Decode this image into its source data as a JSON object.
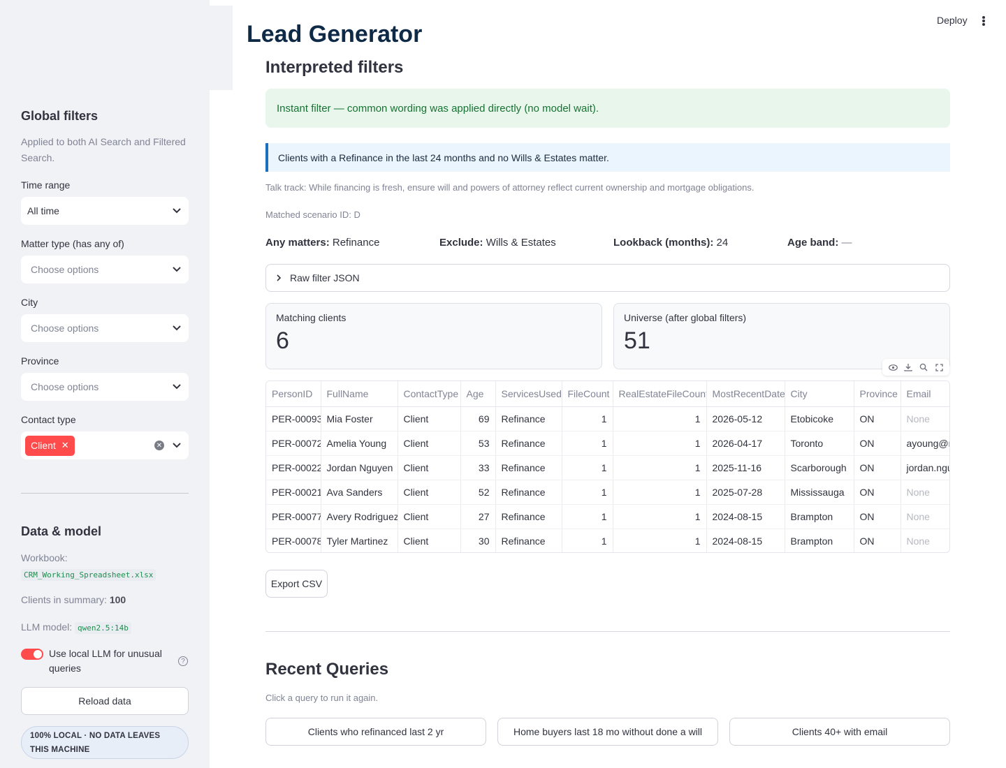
{
  "header": {
    "deploy_label": "Deploy",
    "title": "Lead Generator"
  },
  "sidebar": {
    "global_filters_heading": "Global filters",
    "global_filters_caption": "Applied to both AI Search and Filtered Search.",
    "time_range": {
      "label": "Time range",
      "value": "All time"
    },
    "matter_type": {
      "label": "Matter type (has any of)",
      "placeholder": "Choose options"
    },
    "city": {
      "label": "City",
      "placeholder": "Choose options"
    },
    "province": {
      "label": "Province",
      "placeholder": "Choose options"
    },
    "contact_type": {
      "label": "Contact type",
      "chip": "Client"
    },
    "data_model_heading": "Data & model",
    "workbook_label": "Workbook:",
    "workbook_value": "CRM_Working_Spreadsheet.xlsx",
    "clients_summary_label": "Clients in summary:",
    "clients_summary_value": "100",
    "llm_model_label": "LLM model:",
    "llm_model_value": "qwen2.5:14b",
    "toggle_label": "Use local LLM for unusual queries",
    "reload_label": "Reload data",
    "privacy_badge": "100% LOCAL · NO DATA LEAVES THIS MACHINE"
  },
  "main": {
    "interpreted_heading": "Interpreted filters",
    "success_message": "Instant filter — common wording was applied directly (no model wait).",
    "info_message": "Clients with a Refinance in the last 24 months and no Wills & Estates matter.",
    "talk_track": "Talk track: While financing is fresh, ensure will and powers of attorney reflect current ownership and mortgage obligations.",
    "scenario": "Matched scenario ID: D",
    "filters": {
      "any_label": "Any matters:",
      "any_value": "Refinance",
      "exclude_label": "Exclude:",
      "exclude_value": "Wills & Estates",
      "lookback_label": "Lookback (months):",
      "lookback_value": "24",
      "age_label": "Age band:",
      "age_value": "—"
    },
    "raw_json_label": "Raw filter JSON",
    "metric_matching": {
      "label": "Matching clients",
      "value": "6"
    },
    "metric_universe": {
      "label": "Universe (after global filters)",
      "value": "51"
    },
    "table": {
      "columns": [
        "PersonID",
        "FullName",
        "ContactType",
        "Age",
        "ServicesUsed",
        "FileCount",
        "RealEstateFileCount",
        "MostRecentDate",
        "City",
        "Province",
        "Email"
      ],
      "rows": [
        [
          "PER-00093",
          "Mia Foster",
          "Client",
          "69",
          "Refinance",
          "1",
          "1",
          "2026-05-12",
          "Etobicoke",
          "ON",
          "None"
        ],
        [
          "PER-00072",
          "Amelia Young",
          "Client",
          "53",
          "Refinance",
          "1",
          "1",
          "2026-04-17",
          "Toronto",
          "ON",
          "ayoung@m"
        ],
        [
          "PER-00022",
          "Jordan Nguyen",
          "Client",
          "33",
          "Refinance",
          "1",
          "1",
          "2025-11-16",
          "Scarborough",
          "ON",
          "jordan.ngu"
        ],
        [
          "PER-00021",
          "Ava Sanders",
          "Client",
          "52",
          "Refinance",
          "1",
          "1",
          "2025-07-28",
          "Mississauga",
          "ON",
          "None"
        ],
        [
          "PER-00077",
          "Avery Rodriguez",
          "Client",
          "27",
          "Refinance",
          "1",
          "1",
          "2024-08-15",
          "Brampton",
          "ON",
          "None"
        ],
        [
          "PER-00078",
          "Tyler Martinez",
          "Client",
          "30",
          "Refinance",
          "1",
          "1",
          "2024-08-15",
          "Brampton",
          "ON",
          "None"
        ]
      ]
    },
    "export_label": "Export CSV",
    "recent_heading": "Recent Queries",
    "recent_caption": "Click a query to run it again.",
    "recent_queries": [
      "Clients who refinanced last 2 yr",
      "Home buyers last 18 mo without done a will",
      "Clients 40+ with email"
    ]
  }
}
